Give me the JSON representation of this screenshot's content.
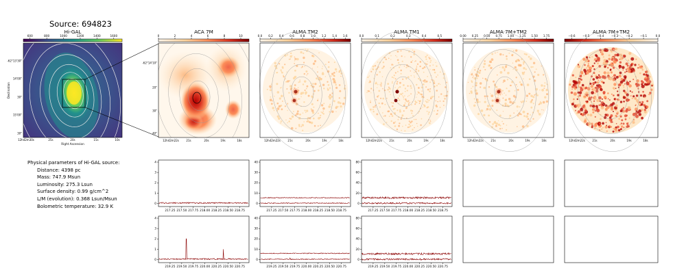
{
  "source_title": "Source: 694823",
  "colors": {
    "spectrum_line": "#8b0000",
    "contour_light": "#e8e8e8",
    "contour_dark": "#888888"
  },
  "chart_data": [
    {
      "type": "heatmap",
      "title": "Hi-GAL",
      "colormap": "viridis",
      "colorbar_ticks": [
        "600",
        "800",
        "1000",
        "1200",
        "1400",
        "1600"
      ],
      "colorbar_range": [
        520,
        1700
      ],
      "xlabel": "Right Ascension",
      "ylabel": "Declination",
      "x_ticks": [
        "12h42m30s",
        "25s",
        "20s",
        "15s",
        "10s"
      ],
      "y_ticks": [
        "-62°13'30\"",
        "14'00\"",
        "30\"",
        "15'00\"",
        "30\""
      ]
    },
    {
      "type": "heatmap",
      "title": "ACA 7M",
      "colormap": "OrRd",
      "colorbar_ticks": [
        "0",
        "2",
        "4",
        "6",
        "8",
        "10"
      ],
      "colorbar_range": [
        0,
        11
      ],
      "x_ticks": [
        "12h42m22s",
        "21s",
        "20s",
        "19s",
        "18s"
      ],
      "y_ticks": [
        "-62°14'10\"",
        "20\"",
        "30\"",
        "40\""
      ]
    },
    {
      "type": "heatmap",
      "title": "ALMA TM2",
      "colormap": "OrRd",
      "colorbar_ticks": [
        "0.0",
        "0.2",
        "0.4",
        "0.6",
        "0.8",
        "1.0",
        "1.2",
        "1.4",
        "1.6"
      ],
      "colorbar_range": [
        0,
        1.7
      ],
      "x_ticks": [
        "12h42m22s",
        "21s",
        "20s",
        "19s",
        "18s"
      ]
    },
    {
      "type": "heatmap",
      "title": "ALMA TM1",
      "colormap": "OrRd",
      "colorbar_ticks": [
        "0.0",
        "0.1",
        "0.2",
        "0.3",
        "0.4",
        "0.5"
      ],
      "colorbar_range": [
        0,
        0.58
      ],
      "x_ticks": [
        "12h42m22s",
        "21s",
        "20s",
        "19s",
        "18s"
      ]
    },
    {
      "type": "heatmap",
      "title": "ALMA 7M+TM2",
      "colormap": "OrRd",
      "colorbar_ticks": [
        "0.00",
        "0.25",
        "0.50",
        "0.75",
        "1.00",
        "1.25",
        "1.50",
        "1.75"
      ],
      "colorbar_range": [
        0,
        1.9
      ],
      "x_ticks": [
        "12h42m22s",
        "21s",
        "20s",
        "19s",
        "18s"
      ]
    },
    {
      "type": "heatmap",
      "title": "ALMA 7M+TM2",
      "colormap": "OrRd_r",
      "colorbar_ticks": [
        "−0.6",
        "−0.5",
        "−0.4",
        "−0.3",
        "−0.2",
        "−0.1",
        "0.0"
      ],
      "colorbar_range": [
        -0.65,
        0
      ],
      "x_ticks": [
        "12h42m22s",
        "21s",
        "20s",
        "19s",
        "18s"
      ]
    },
    {
      "type": "line",
      "x_ticks": [
        "217.25",
        "217.50",
        "217.75",
        "218.00",
        "218.25",
        "218.50",
        "218.75"
      ],
      "xlim": [
        217.0,
        218.95
      ],
      "y_ticks": [
        "0",
        "1",
        "2",
        "3",
        "4"
      ],
      "ylim": [
        -0.3,
        4.2
      ],
      "series": [
        {
          "level": 0.05,
          "noise": 0.06
        }
      ]
    },
    {
      "type": "line",
      "x_ticks": [
        "217.25",
        "217.50",
        "217.75",
        "218.00",
        "218.25",
        "218.50",
        "218.75"
      ],
      "xlim": [
        217.0,
        218.95
      ],
      "y_ticks": [
        "0",
        "10",
        "20",
        "30",
        "40"
      ],
      "ylim": [
        -3,
        42
      ],
      "series": [
        {
          "level": 5.5,
          "noise": 0.4
        },
        {
          "level": 0.3,
          "noise": 0.4
        }
      ]
    },
    {
      "type": "line",
      "x_ticks": [
        "217.25",
        "217.50",
        "217.75",
        "218.00",
        "218.25",
        "218.50",
        "218.75"
      ],
      "xlim": [
        217.0,
        218.95
      ],
      "y_ticks": [
        "0",
        "20",
        "40",
        "60",
        "80"
      ],
      "ylim": [
        -6,
        84
      ],
      "series": [
        {
          "level": 11,
          "noise": 1.8
        },
        {
          "level": 0.5,
          "noise": 1.5
        }
      ]
    },
    {
      "type": "line",
      "series": []
    },
    {
      "type": "line",
      "series": []
    },
    {
      "type": "line",
      "x_ticks": [
        "219.25",
        "219.50",
        "219.75",
        "220.00",
        "220.25",
        "220.50",
        "220.75"
      ],
      "xlim": [
        219.0,
        220.95
      ],
      "y_ticks": [
        "0",
        "1",
        "2",
        "3",
        "4"
      ],
      "ylim": [
        -0.3,
        4.2
      ],
      "series": [
        {
          "level": 0.05,
          "noise": 0.06,
          "spikes": [
            [
              219.6,
              2.0
            ],
            [
              220.4,
              1.0
            ]
          ]
        }
      ]
    },
    {
      "type": "line",
      "x_ticks": [
        "219.25",
        "219.50",
        "219.75",
        "220.00",
        "220.25",
        "220.50",
        "220.75"
      ],
      "xlim": [
        219.0,
        220.95
      ],
      "y_ticks": [
        "0",
        "10",
        "20",
        "30",
        "40"
      ],
      "ylim": [
        -3,
        42
      ],
      "series": [
        {
          "level": 6,
          "noise": 0.4
        },
        {
          "level": 0.3,
          "noise": 0.4,
          "spikes": [
            [
              219.65,
              1.5
            ]
          ]
        }
      ]
    },
    {
      "type": "line",
      "x_ticks": [
        "219.25",
        "219.50",
        "219.75",
        "220.00",
        "220.25",
        "220.50",
        "220.75"
      ],
      "xlim": [
        219.0,
        220.95
      ],
      "y_ticks": [
        "0",
        "20",
        "40",
        "60",
        "80"
      ],
      "ylim": [
        -6,
        84
      ],
      "series": [
        {
          "level": 11,
          "noise": 1.8
        },
        {
          "level": 0.5,
          "noise": 1.5
        }
      ]
    },
    {
      "type": "line",
      "series": []
    },
    {
      "type": "line",
      "series": []
    }
  ],
  "physical": {
    "header": "Physical parameters of Hi-GAL source:",
    "lines": [
      "Distance: 4398 pc",
      "Mass: 747.9 Msun",
      "Luminosity: 275.3 Lsun",
      "Surface density: 0.99 g/cm^2",
      "L/M (evolution): 0.368 Lsun/Msun",
      "Bolometric temperature: 32.9 K"
    ]
  }
}
